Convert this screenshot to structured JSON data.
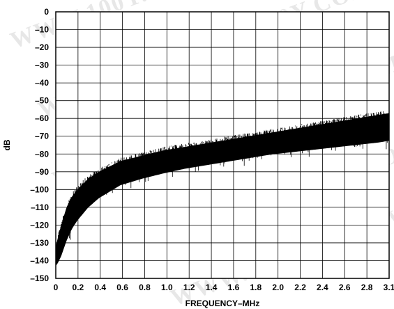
{
  "chart_data": {
    "type": "area",
    "title": "",
    "xlabel": "FREQUENCY–MHz",
    "ylabel": "dB",
    "xlim": [
      0,
      3.1
    ],
    "ylim": [
      -150,
      0
    ],
    "grid": true,
    "x_ticks": [
      "0",
      "0.2",
      "0.4",
      "0.6",
      "0.8",
      "1.0",
      "1.2",
      "1.4",
      "1.6",
      "1.8",
      "2.0",
      "2.2",
      "2.4",
      "2.6",
      "2.8",
      "3.1"
    ],
    "y_ticks": [
      "0",
      "–10",
      "–20",
      "–30",
      "–40",
      "–50",
      "–60",
      "–70",
      "–80",
      "–90",
      "–100",
      "–110",
      "–120",
      "–130",
      "–140",
      "–150"
    ],
    "watermark": "WWW.100Y.COM.TW",
    "series": [
      {
        "x": [
          0,
          0.02,
          0.05,
          0.1,
          0.15,
          0.2,
          0.3,
          0.4,
          0.5,
          0.6,
          0.8,
          1.0,
          1.2,
          1.4,
          1.6,
          1.8,
          2.0,
          2.2,
          2.4,
          2.6,
          2.8,
          3.0,
          3.1
        ],
        "upper": [
          -130,
          -125,
          -118,
          -108,
          -102,
          -98,
          -92,
          -88,
          -85,
          -82,
          -79,
          -76,
          -74,
          -72,
          -70,
          -68,
          -66,
          -64,
          -62,
          -60,
          -58,
          -56,
          -55
        ],
        "lower": [
          -150,
          -150,
          -148,
          -140,
          -133,
          -128,
          -120,
          -114,
          -110,
          -106,
          -102,
          -99,
          -96,
          -94,
          -92,
          -90,
          -88,
          -87,
          -86,
          -85,
          -84,
          -83,
          -82
        ]
      }
    ]
  }
}
